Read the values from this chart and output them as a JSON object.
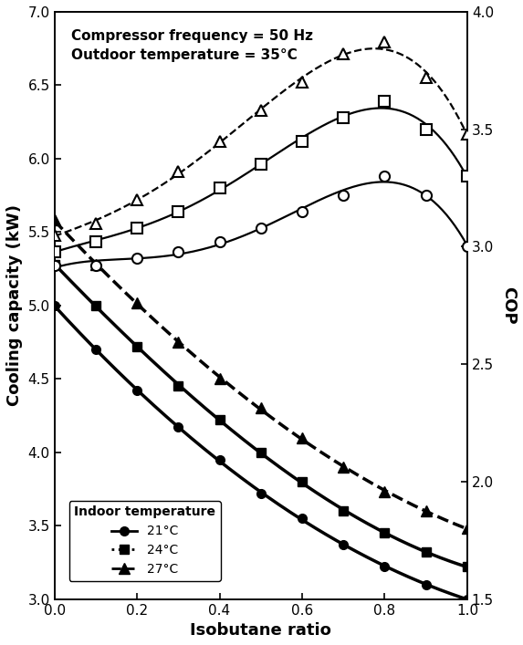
{
  "title_annotation_line1": "Compressor frequency = 50 Hz",
  "title_annotation_line2": "Outdoor temperature = 35°C",
  "xlabel": "Isobutane ratio",
  "ylabel_left": "Cooling capacity (kW)",
  "ylabel_right": "COP",
  "xlim": [
    0.0,
    1.0
  ],
  "ylim_left": [
    3.0,
    7.0
  ],
  "ylim_right": [
    1.5,
    4.0
  ],
  "xticks": [
    0.0,
    0.2,
    0.4,
    0.6,
    0.8,
    1.0
  ],
  "yticks_left": [
    3.0,
    3.5,
    4.0,
    4.5,
    5.0,
    5.5,
    6.0,
    6.5,
    7.0
  ],
  "yticks_right": [
    1.5,
    2.0,
    2.5,
    3.0,
    3.5,
    4.0
  ],
  "cc_21_x": [
    0.0,
    0.1,
    0.2,
    0.3,
    0.4,
    0.5,
    0.6,
    0.7,
    0.8,
    0.9,
    1.0
  ],
  "cc_21_y": [
    5.0,
    4.7,
    4.42,
    4.17,
    3.95,
    3.72,
    3.55,
    3.37,
    3.22,
    3.1,
    3.0
  ],
  "cc_24_x": [
    0.0,
    0.1,
    0.2,
    0.3,
    0.4,
    0.5,
    0.6,
    0.7,
    0.8,
    0.9,
    1.0
  ],
  "cc_24_y": [
    5.28,
    5.0,
    4.72,
    4.45,
    4.22,
    4.0,
    3.8,
    3.6,
    3.45,
    3.32,
    3.22
  ],
  "cc_27_x": [
    0.0,
    0.1,
    0.2,
    0.3,
    0.4,
    0.5,
    0.6,
    0.7,
    0.8,
    0.9,
    1.0
  ],
  "cc_27_y": [
    5.58,
    5.28,
    5.02,
    4.75,
    4.5,
    4.3,
    4.1,
    3.9,
    3.73,
    3.6,
    3.48
  ],
  "cop_21_x": [
    0.0,
    0.1,
    0.2,
    0.3,
    0.4,
    0.5,
    0.6,
    0.7,
    0.8,
    0.9,
    1.0
  ],
  "cop_21_y": [
    2.92,
    2.92,
    2.95,
    2.98,
    3.02,
    3.08,
    3.15,
    3.22,
    3.3,
    3.22,
    3.0
  ],
  "cop_24_x": [
    0.0,
    0.1,
    0.2,
    0.3,
    0.4,
    0.5,
    0.6,
    0.7,
    0.8,
    0.9,
    1.0
  ],
  "cop_24_y": [
    2.98,
    3.02,
    3.08,
    3.15,
    3.25,
    3.35,
    3.45,
    3.55,
    3.62,
    3.5,
    3.3
  ],
  "cop_27_x": [
    0.0,
    0.1,
    0.2,
    0.3,
    0.4,
    0.5,
    0.6,
    0.7,
    0.8,
    0.9,
    1.0
  ],
  "cop_27_y": [
    3.05,
    3.1,
    3.2,
    3.32,
    3.45,
    3.58,
    3.7,
    3.82,
    3.87,
    3.72,
    3.48
  ],
  "legend_title": "Indoor temperature",
  "legend_labels": [
    "21°C",
    "24°C",
    "27°C"
  ],
  "background_color": "#ffffff"
}
